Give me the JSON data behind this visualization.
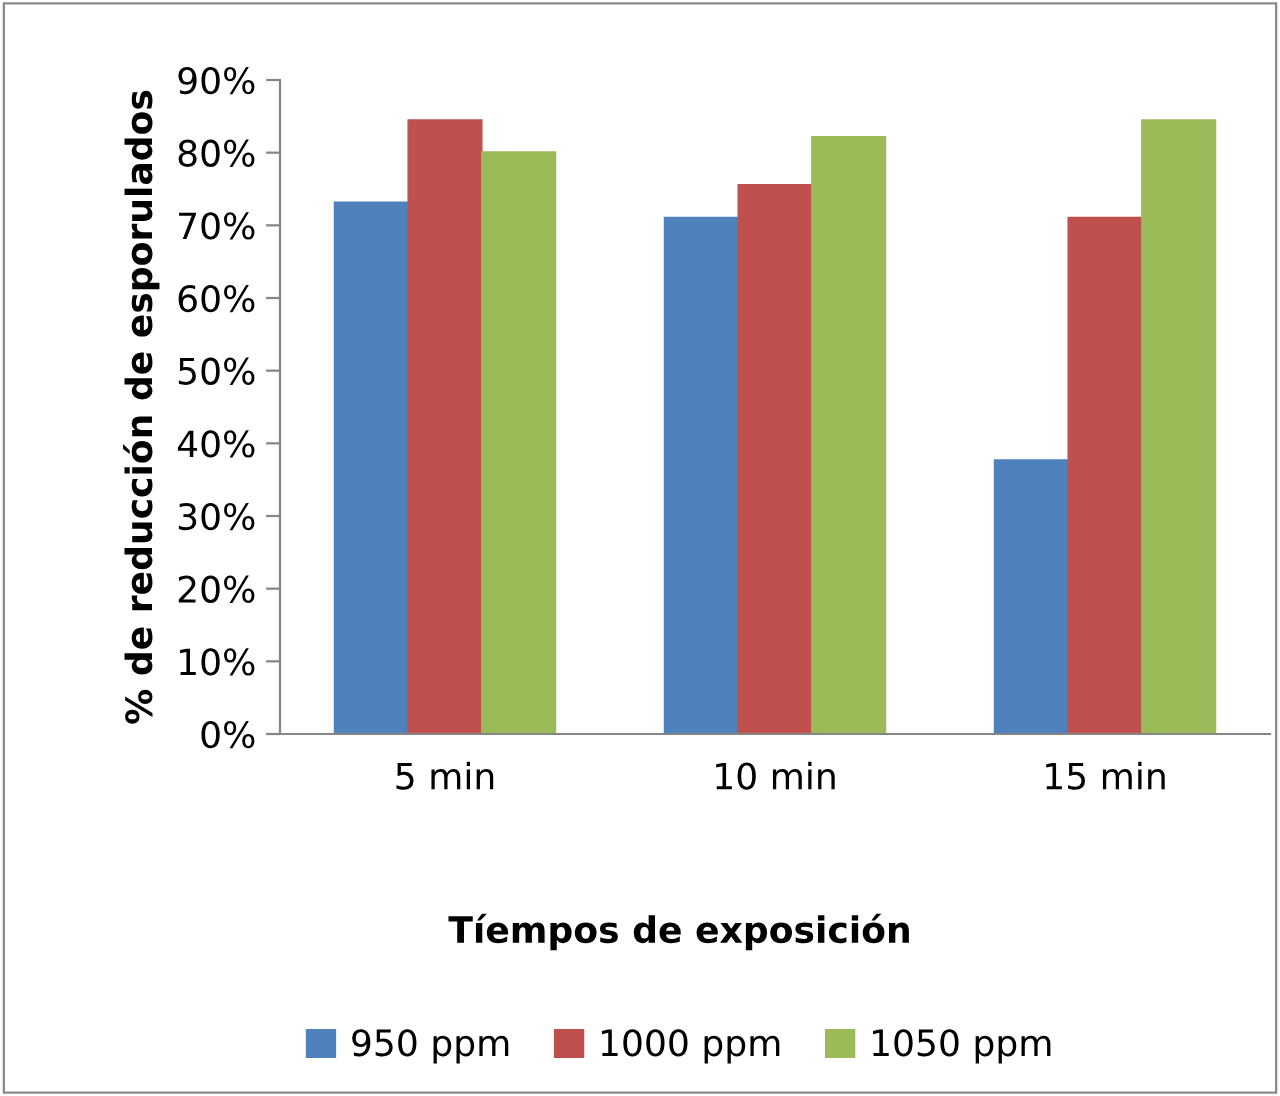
{
  "chart_data": {
    "type": "bar",
    "xlabel": "Tíempos de exposición",
    "ylabel": "% de reducción de esporulados",
    "categories": [
      "5 min",
      "10 min",
      "15 min"
    ],
    "series": [
      {
        "name": "950 ppm",
        "color": "#4f81bd",
        "values": [
          73.2,
          71.1,
          37.7
        ]
      },
      {
        "name": "1000 ppm",
        "color": "#c0504d",
        "values": [
          84.5,
          75.6,
          71.1
        ]
      },
      {
        "name": "1050 ppm",
        "color": "#9bbb59",
        "values": [
          80.1,
          82.2,
          84.5
        ]
      }
    ],
    "ylim": [
      0,
      90
    ],
    "yticks": [
      {
        "value": 0,
        "label": "0%"
      },
      {
        "value": 10,
        "label": "10%"
      },
      {
        "value": 20,
        "label": "20%"
      },
      {
        "value": 30,
        "label": "30%"
      },
      {
        "value": 40,
        "label": "40%"
      },
      {
        "value": 50,
        "label": "50%"
      },
      {
        "value": 60,
        "label": "60%"
      },
      {
        "value": 70,
        "label": "70%"
      },
      {
        "value": 80,
        "label": "80%"
      },
      {
        "value": 90,
        "label": "90%"
      }
    ],
    "grid": false,
    "legend": "bottom"
  }
}
